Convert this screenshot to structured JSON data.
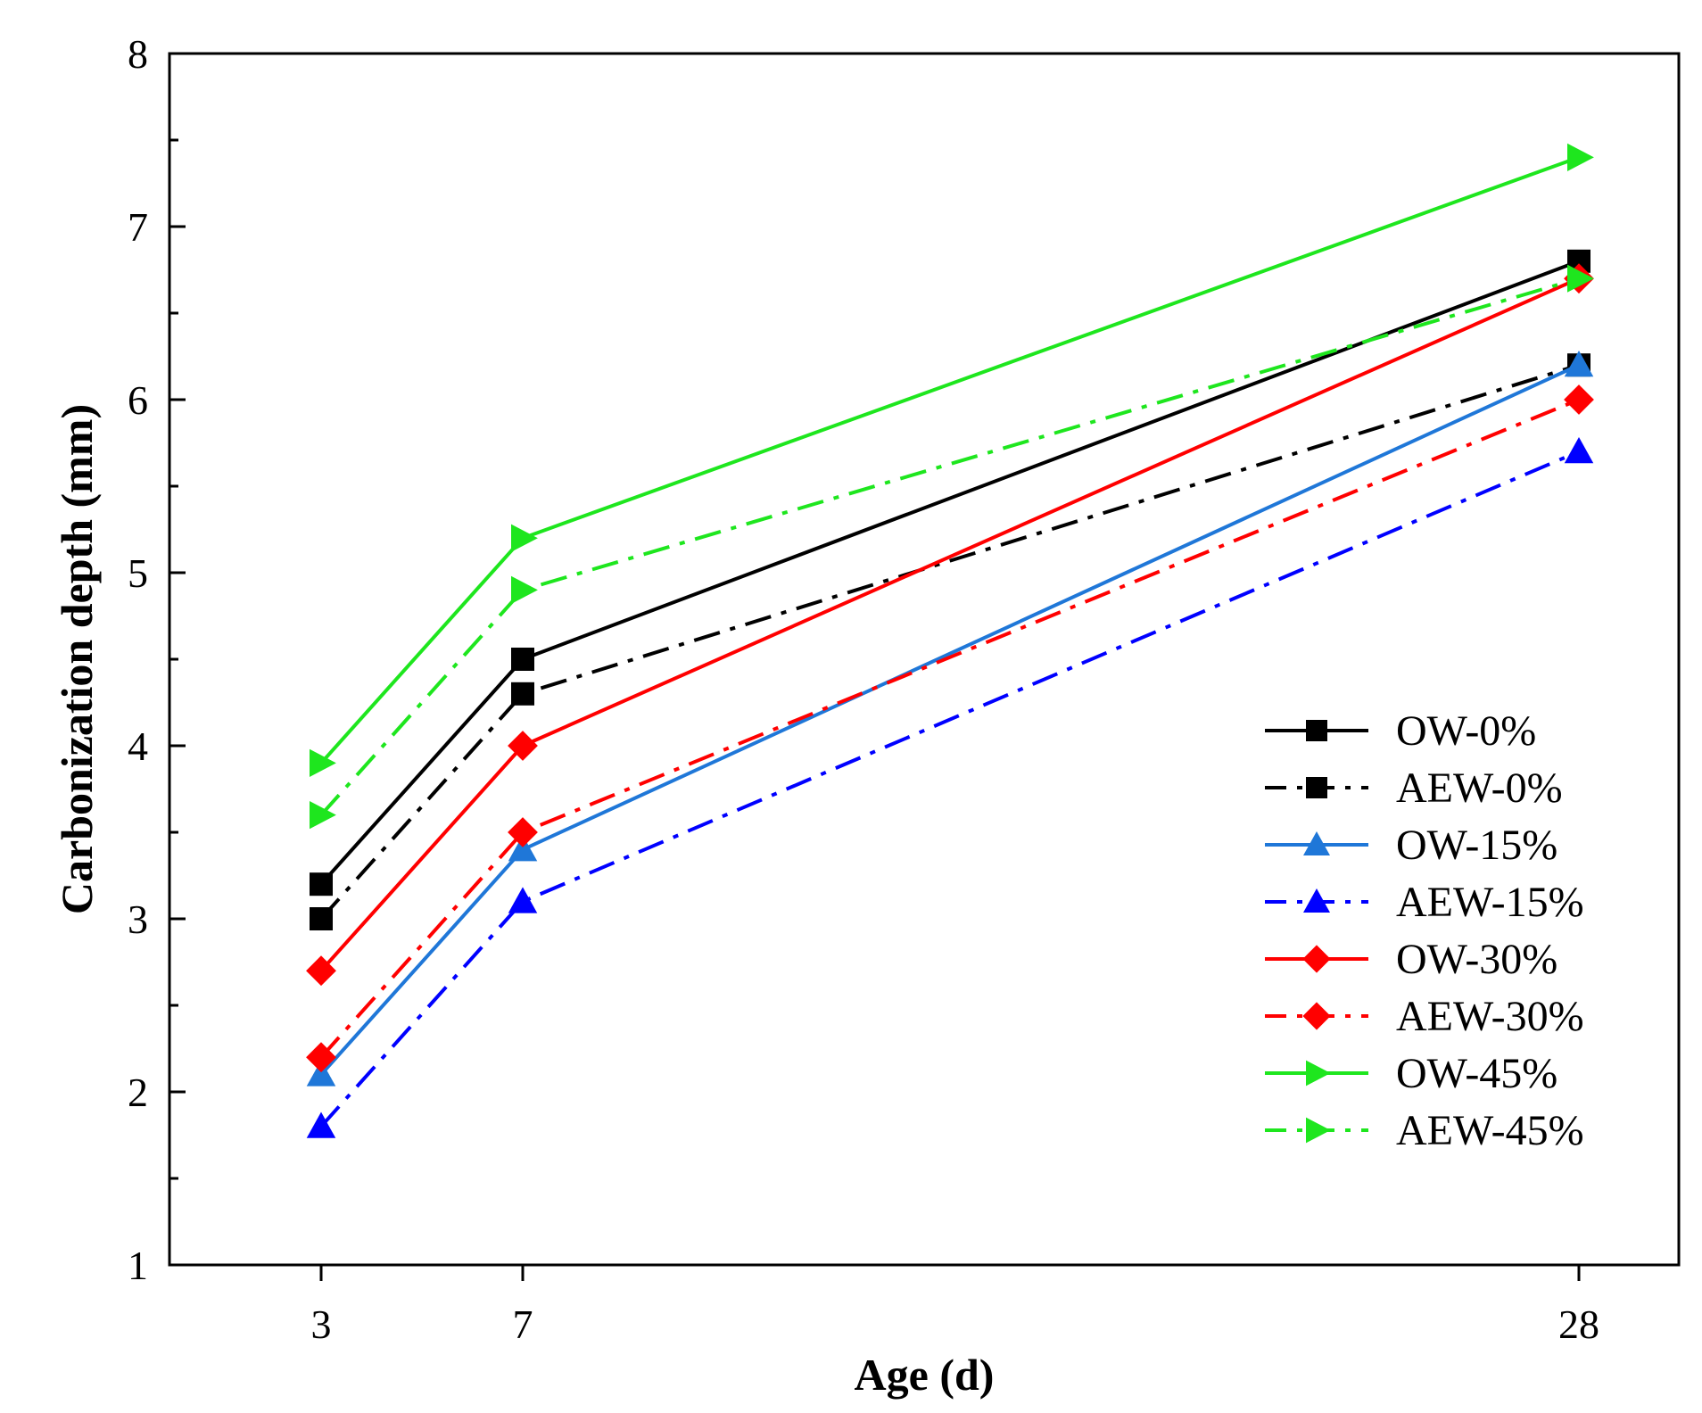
{
  "chart_data": {
    "type": "line",
    "title": "",
    "xlabel": "Age (d)",
    "ylabel": "Carbonization depth (mm)",
    "x": [
      3,
      7,
      28
    ],
    "x_tick_labels": [
      "3",
      "7",
      "28"
    ],
    "xlim": [
      0,
      31
    ],
    "ylim": [
      1,
      8
    ],
    "y_ticks": [
      1,
      2,
      3,
      4,
      5,
      6,
      7,
      8
    ],
    "y_tick_labels": [
      "1",
      "2",
      "3",
      "4",
      "5",
      "6",
      "7",
      "8"
    ],
    "grid": false,
    "legend_position": "right-middle",
    "series": [
      {
        "name": "OW-0%",
        "values": [
          3.2,
          4.5,
          6.8
        ],
        "color": "#000000",
        "dash": "solid",
        "marker": "square"
      },
      {
        "name": "AEW-0%",
        "values": [
          3.0,
          4.3,
          6.2
        ],
        "color": "#000000",
        "dash": "dashdot",
        "marker": "square"
      },
      {
        "name": "OW-15%",
        "values": [
          2.1,
          3.4,
          6.2
        ],
        "color": "#1f77d8",
        "dash": "solid",
        "marker": "triangle-up"
      },
      {
        "name": "AEW-15%",
        "values": [
          1.8,
          3.1,
          5.7
        ],
        "color": "#0000ff",
        "dash": "dashdot",
        "marker": "triangle-up"
      },
      {
        "name": "OW-30%",
        "values": [
          2.7,
          4.0,
          6.7
        ],
        "color": "#ff0000",
        "dash": "solid",
        "marker": "diamond"
      },
      {
        "name": "AEW-30%",
        "values": [
          2.2,
          3.5,
          6.0
        ],
        "color": "#ff0000",
        "dash": "dashdot",
        "marker": "diamond"
      },
      {
        "name": "OW-45%",
        "values": [
          3.9,
          5.2,
          7.4
        ],
        "color": "#1ee61e",
        "dash": "solid",
        "marker": "triangle-right"
      },
      {
        "name": "AEW-45%",
        "values": [
          3.6,
          4.9,
          6.7
        ],
        "color": "#1ee61e",
        "dash": "dashdot",
        "marker": "triangle-right"
      }
    ]
  }
}
